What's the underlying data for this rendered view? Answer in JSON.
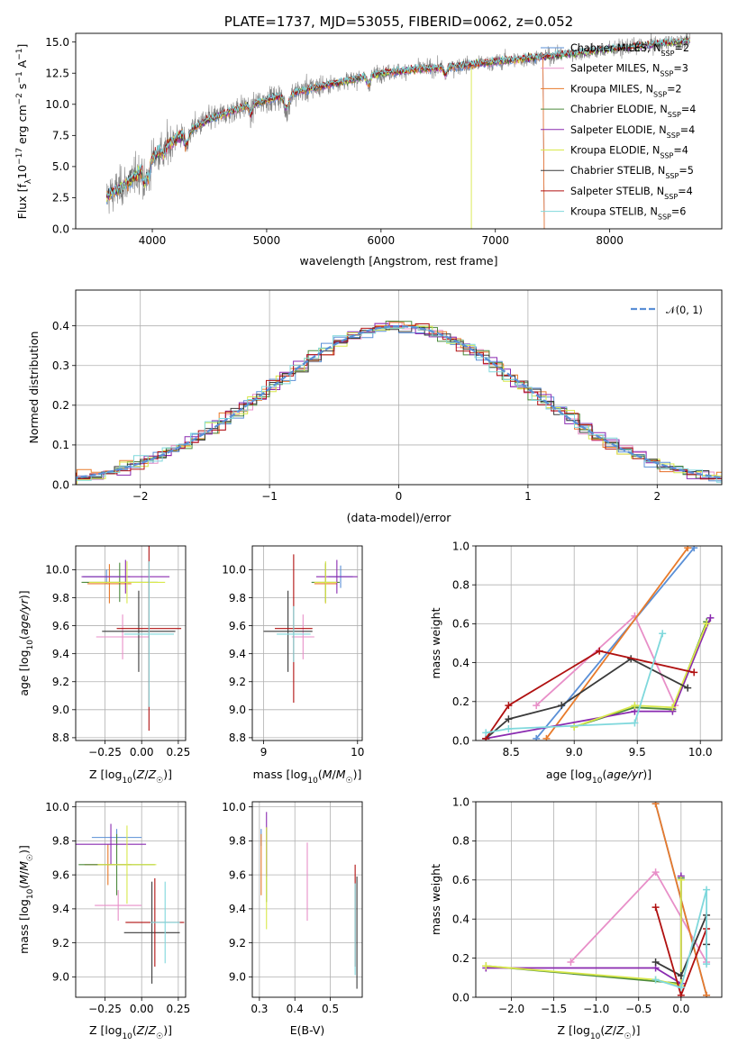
{
  "colors": {
    "chabrier_miles": "#5a8fd6",
    "salpeter_miles": "#e88fc8",
    "kroupa_miles": "#e87a2a",
    "chabrier_elodie": "#4c8a3c",
    "salpeter_elodie": "#8a2ab0",
    "kroupa_elodie": "#d8e84a",
    "chabrier_stelib": "#3a3a3a",
    "salpeter_stelib": "#b01010",
    "kroupa_stelib": "#7fd8dc",
    "spectrum": "#808080",
    "normal": "#5a8fd6",
    "grid": "#b0b0b0"
  },
  "chart_data": [
    {
      "id": "spectrum",
      "type": "line",
      "title": "PLATE=1737, MJD=53055, FIBERID=0062, z=0.052",
      "xlabel": "wavelength [Angstrom, rest frame]",
      "ylabel": "Flux [f_λ 10⁻¹⁷ erg cm⁻² s⁻¹ A⁻¹]",
      "xlim": [
        3330,
        8980
      ],
      "ylim": [
        0,
        15.7
      ],
      "xticks": [
        "4000",
        "5000",
        "6000",
        "7000",
        "8000"
      ],
      "yticks": [
        "0.0",
        "2.5",
        "5.0",
        "7.5",
        "10.0",
        "12.5",
        "15.0"
      ],
      "legend_position": "top-right",
      "legend": [
        "Chabrier MILES, N_SSP=2",
        "Salpeter MILES, N_SSP=3",
        "Kroupa MILES, N_SSP=2",
        "Chabrier ELODIE, N_SSP=4",
        "Salpeter ELODIE, N_SSP=4",
        "Kroupa ELODIE, N_SSP=4",
        "Chabrier STELIB, N_SSP=5",
        "Salpeter STELIB, N_SSP=4",
        "Kroupa STELIB, N_SSP=6"
      ],
      "continuum": {
        "x": [
          3600,
          3800,
          3950,
          4100,
          4300,
          4500,
          4800,
          5100,
          5400,
          5700,
          6000,
          6300,
          6600,
          6900,
          7200,
          7500,
          7800,
          8100,
          8400,
          8700
        ],
        "y": [
          2.6,
          3.8,
          5.2,
          6.6,
          7.8,
          8.8,
          9.8,
          10.6,
          11.3,
          11.9,
          12.5,
          12.8,
          13.0,
          13.3,
          13.6,
          13.9,
          14.2,
          14.5,
          14.8,
          15.1
        ]
      }
    },
    {
      "id": "residuals",
      "type": "line",
      "xlabel": "(data-model)/error",
      "ylabel": "Normed distribution",
      "xlim": [
        -2.5,
        2.5
      ],
      "ylim": [
        0,
        0.49
      ],
      "xticks": [
        "−2",
        "−1",
        "0",
        "1",
        "2"
      ],
      "yticks": [
        "0.0",
        "0.1",
        "0.2",
        "0.3",
        "0.4"
      ],
      "grid": true,
      "legend_position": "top-right",
      "legend": [
        "𝒩(0, 1)"
      ]
    },
    {
      "id": "age_vs_Z",
      "type": "scatter",
      "xlabel": "Z [log₁₀(Z/Z☉)]",
      "ylabel": "age  [log₁₀(age/yr)]",
      "xlim": [
        -0.45,
        0.3
      ],
      "ylim": [
        8.78,
        10.17
      ],
      "xticks": [
        "−0.25",
        "0.00",
        "0.25"
      ],
      "yticks": [
        "8.8",
        "9.0",
        "9.2",
        "9.4",
        "9.6",
        "9.8",
        "10.0"
      ],
      "grid": true,
      "points": [
        {
          "x": -0.24,
          "y": 9.95,
          "dx": 0.16,
          "dy": 0.05,
          "c": "chabrier_miles"
        },
        {
          "x": -0.13,
          "y": 9.52,
          "dx": 0.18,
          "dy": 0.16,
          "c": "salpeter_miles"
        },
        {
          "x": -0.22,
          "y": 9.9,
          "dx": 0.15,
          "dy": 0.14,
          "c": "kroupa_miles"
        },
        {
          "x": -0.15,
          "y": 9.91,
          "dx": 0.26,
          "dy": 0.14,
          "c": "chabrier_elodie"
        },
        {
          "x": -0.11,
          "y": 9.95,
          "dx": 0.3,
          "dy": 0.12,
          "c": "salpeter_elodie"
        },
        {
          "x": -0.1,
          "y": 9.91,
          "dx": 0.26,
          "dy": 0.15,
          "c": "kroupa_elodie"
        },
        {
          "x": -0.02,
          "y": 9.56,
          "dx": 0.25,
          "dy": 0.29,
          "c": "chabrier_stelib"
        },
        {
          "x": 0.05,
          "y": 9.58,
          "dx": 0.22,
          "dy": 0.73,
          "c": "salpeter_stelib"
        },
        {
          "x": 0.05,
          "y": 9.54,
          "dx": 0.17,
          "dy": 0.52,
          "c": "kroupa_stelib"
        }
      ]
    },
    {
      "id": "age_vs_mass",
      "type": "scatter",
      "xlabel": "mass [log₁₀(M/M☉)]",
      "ylabel": "",
      "xlim": [
        8.88,
        10.05
      ],
      "ylim": [
        8.78,
        10.17
      ],
      "xticks": [
        "9",
        "10"
      ],
      "yticks": [
        "8.8",
        "9.0",
        "9.2",
        "9.4",
        "9.6",
        "9.8",
        "10.0"
      ],
      "grid": true,
      "points": [
        {
          "x": 9.82,
          "y": 9.95,
          "dx": 0.13,
          "dy": 0.08,
          "c": "chabrier_miles"
        },
        {
          "x": 9.42,
          "y": 9.52,
          "dx": 0.12,
          "dy": 0.16,
          "c": "salpeter_miles"
        },
        {
          "x": 9.66,
          "y": 9.9,
          "dx": 0.12,
          "dy": 0.14,
          "c": "kroupa_miles"
        },
        {
          "x": 9.66,
          "y": 9.91,
          "dx": 0.15,
          "dy": 0.14,
          "c": "chabrier_elodie"
        },
        {
          "x": 9.78,
          "y": 9.95,
          "dx": 0.22,
          "dy": 0.12,
          "c": "salpeter_elodie"
        },
        {
          "x": 9.66,
          "y": 9.91,
          "dx": 0.12,
          "dy": 0.15,
          "c": "kroupa_elodie"
        },
        {
          "x": 9.26,
          "y": 9.56,
          "dx": 0.26,
          "dy": 0.29,
          "c": "chabrier_stelib"
        },
        {
          "x": 9.32,
          "y": 9.58,
          "dx": 0.2,
          "dy": 0.53,
          "c": "salpeter_stelib"
        },
        {
          "x": 9.32,
          "y": 9.54,
          "dx": 0.18,
          "dy": 0.2,
          "c": "kroupa_stelib"
        }
      ]
    },
    {
      "id": "weight_vs_age",
      "type": "line",
      "xlabel": "age  [log₁₀(age/yr)]",
      "ylabel": "mass weight",
      "xlim": [
        8.22,
        10.17
      ],
      "ylim": [
        0,
        1.0
      ],
      "xticks": [
        "8.5",
        "9.0",
        "9.5",
        "10.0"
      ],
      "yticks": [
        "0.0",
        "0.2",
        "0.4",
        "0.6",
        "0.8",
        "1.0"
      ],
      "grid": true,
      "series": [
        {
          "c": "chabrier_miles",
          "x": [
            8.7,
            9.95
          ],
          "y": [
            0.01,
            0.99
          ]
        },
        {
          "c": "salpeter_miles",
          "x": [
            8.7,
            9.48,
            9.8
          ],
          "y": [
            0.18,
            0.64,
            0.18
          ]
        },
        {
          "c": "kroupa_miles",
          "x": [
            8.78,
            9.9
          ],
          "y": [
            0.01,
            0.99
          ]
        },
        {
          "c": "chabrier_elodie",
          "x": [
            9.0,
            9.48,
            9.78,
            10.05
          ],
          "y": [
            0.07,
            0.17,
            0.16,
            0.61
          ]
        },
        {
          "c": "salpeter_elodie",
          "x": [
            8.3,
            9.48,
            9.78,
            10.08
          ],
          "y": [
            0.01,
            0.15,
            0.15,
            0.63
          ]
        },
        {
          "c": "kroupa_elodie",
          "x": [
            9.0,
            9.48,
            9.78,
            10.05
          ],
          "y": [
            0.07,
            0.18,
            0.17,
            0.6
          ]
        },
        {
          "c": "chabrier_stelib",
          "x": [
            8.3,
            8.48,
            8.9,
            9.45,
            9.9
          ],
          "y": [
            0.01,
            0.11,
            0.18,
            0.42,
            0.27
          ]
        },
        {
          "c": "salpeter_stelib",
          "x": [
            8.3,
            8.48,
            9.2,
            9.95
          ],
          "y": [
            0.01,
            0.18,
            0.46,
            0.35
          ]
        },
        {
          "c": "kroupa_stelib",
          "x": [
            8.3,
            8.48,
            9.48,
            9.7
          ],
          "y": [
            0.04,
            0.06,
            0.09,
            0.55
          ]
        }
      ]
    },
    {
      "id": "mass_vs_Z",
      "type": "scatter",
      "xlabel": "Z [log₁₀(Z/Z☉)]",
      "ylabel": "mass [log₁₀(M/M☉)]",
      "xlim": [
        -0.45,
        0.3
      ],
      "ylim": [
        8.88,
        10.03
      ],
      "xticks": [
        "−0.25",
        "0.00",
        "0.25"
      ],
      "yticks": [
        "9.0",
        "9.2",
        "9.4",
        "9.6",
        "9.8",
        "10.0"
      ],
      "grid": true,
      "points": [
        {
          "x": -0.17,
          "y": 9.82,
          "dx": 0.17,
          "dy": 0.05,
          "c": "chabrier_miles"
        },
        {
          "x": -0.16,
          "y": 9.42,
          "dx": 0.16,
          "dy": 0.09,
          "c": "salpeter_miles"
        },
        {
          "x": -0.23,
          "y": 9.66,
          "dx": 0.16,
          "dy": 0.12,
          "c": "kroupa_miles"
        },
        {
          "x": -0.17,
          "y": 9.66,
          "dx": 0.26,
          "dy": 0.18,
          "c": "chabrier_elodie"
        },
        {
          "x": -0.21,
          "y": 9.78,
          "dx": 0.24,
          "dy": 0.12,
          "c": "salpeter_elodie"
        },
        {
          "x": -0.1,
          "y": 9.66,
          "dx": 0.2,
          "dy": 0.23,
          "c": "kroupa_elodie"
        },
        {
          "x": 0.07,
          "y": 9.26,
          "dx": 0.19,
          "dy": 0.3,
          "c": "chabrier_stelib"
        },
        {
          "x": 0.09,
          "y": 9.32,
          "dx": 0.2,
          "dy": 0.26,
          "c": "salpeter_stelib"
        },
        {
          "x": 0.16,
          "y": 9.32,
          "dx": 0.1,
          "dy": 0.24,
          "c": "kroupa_stelib"
        }
      ]
    },
    {
      "id": "mass_vs_ebv",
      "type": "scatter",
      "xlabel": "E(B-V)",
      "ylabel": "",
      "xlim": [
        0.28,
        0.59
      ],
      "ylim": [
        8.88,
        10.03
      ],
      "xticks": [
        "0.3",
        "0.4",
        "0.5"
      ],
      "yticks": [
        "9.0",
        "9.2",
        "9.4",
        "9.6",
        "9.8",
        "10.0"
      ],
      "grid": true,
      "points": [
        {
          "x": 0.305,
          "y": 9.82,
          "dx": 0,
          "dy": 0.05,
          "c": "chabrier_miles"
        },
        {
          "x": 0.435,
          "y": 9.56,
          "dx": 0,
          "dy": 0.23,
          "c": "salpeter_miles"
        },
        {
          "x": 0.305,
          "y": 9.66,
          "dx": 0,
          "dy": 0.18,
          "c": "kroupa_miles"
        },
        {
          "x": 0.32,
          "y": 9.66,
          "dx": 0,
          "dy": 0.22,
          "c": "chabrier_elodie"
        },
        {
          "x": 0.32,
          "y": 9.78,
          "dx": 0,
          "dy": 0.19,
          "c": "salpeter_elodie"
        },
        {
          "x": 0.32,
          "y": 9.58,
          "dx": 0,
          "dy": 0.3,
          "c": "kroupa_elodie"
        },
        {
          "x": 0.575,
          "y": 9.26,
          "dx": 0,
          "dy": 0.33,
          "c": "chabrier_stelib"
        },
        {
          "x": 0.57,
          "y": 9.36,
          "dx": 0,
          "dy": 0.3,
          "c": "salpeter_stelib"
        },
        {
          "x": 0.57,
          "y": 9.28,
          "dx": 0,
          "dy": 0.27,
          "c": "kroupa_stelib"
        }
      ]
    },
    {
      "id": "weight_vs_Z",
      "type": "line",
      "xlabel": "Z [log₁₀(Z/Z☉)]",
      "ylabel": "mass weight",
      "xlim": [
        -2.42,
        0.48
      ],
      "ylim": [
        0,
        1.0
      ],
      "xticks": [
        "−2.0",
        "−1.5",
        "−1.0",
        "−0.5",
        "0.0"
      ],
      "yticks": [
        "0.0",
        "0.2",
        "0.4",
        "0.6",
        "0.8",
        "1.0"
      ],
      "grid": true,
      "series": [
        {
          "c": "chabrier_miles",
          "x": [
            -0.3,
            0.3
          ],
          "y": [
            0.99,
            0.01
          ]
        },
        {
          "c": "salpeter_miles",
          "x": [
            -1.3,
            -0.3,
            0.3
          ],
          "y": [
            0.18,
            0.64,
            0.18
          ]
        },
        {
          "c": "kroupa_miles",
          "x": [
            -0.3,
            0.3
          ],
          "y": [
            0.99,
            0.01
          ]
        },
        {
          "c": "chabrier_elodie",
          "x": [
            -2.3,
            0.0,
            0.0
          ],
          "y": [
            0.16,
            0.07,
            0.61
          ]
        },
        {
          "c": "salpeter_elodie",
          "x": [
            -2.3,
            -0.3,
            0.0,
            0.0
          ],
          "y": [
            0.15,
            0.15,
            0.07,
            0.62
          ]
        },
        {
          "c": "kroupa_elodie",
          "x": [
            -2.3,
            -0.3,
            0.0,
            0.0
          ],
          "y": [
            0.16,
            0.09,
            0.06,
            0.6
          ]
        },
        {
          "c": "chabrier_stelib",
          "x": [
            -0.3,
            0.0,
            0.3,
            0.3
          ],
          "y": [
            0.18,
            0.11,
            0.42,
            0.27
          ]
        },
        {
          "c": "salpeter_stelib",
          "x": [
            -0.3,
            0.0,
            0.3
          ],
          "y": [
            0.46,
            0.01,
            0.35
          ]
        },
        {
          "c": "kroupa_stelib",
          "x": [
            -0.3,
            0.0,
            0.3,
            0.3
          ],
          "y": [
            0.09,
            0.05,
            0.55,
            0.17
          ]
        }
      ]
    }
  ]
}
